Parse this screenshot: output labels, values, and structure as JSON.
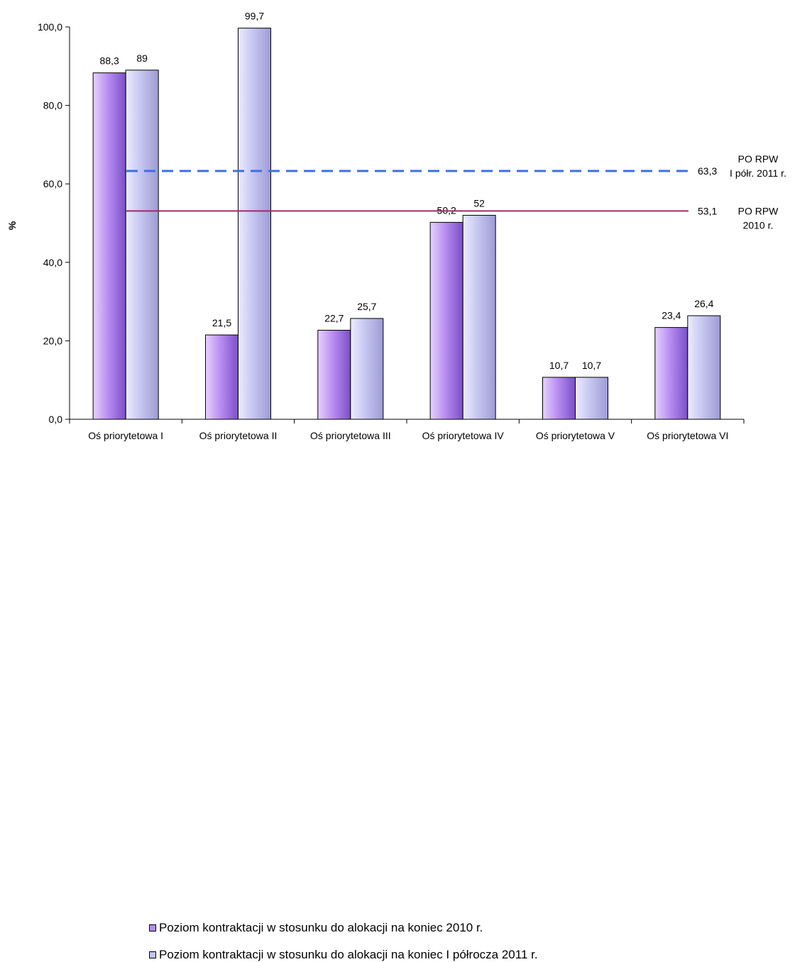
{
  "chart_data": {
    "type": "bar",
    "categories": [
      "Oś priorytetowa I",
      "Oś priorytetowa II",
      "Oś priorytetowa III",
      "Oś priorytetowa IV",
      "Oś priorytetowa V",
      "Oś priorytetowa VI"
    ],
    "series": [
      {
        "name": "Poziom kontraktacji w stosunku do alokacji na koniec 2010 r.",
        "values": [
          88.3,
          21.5,
          22.7,
          50.2,
          10.7,
          23.4
        ],
        "labels": [
          "88,3",
          "21,5",
          "22,7",
          "50,2",
          "10,7",
          "23,4"
        ],
        "color": "#b58cf0"
      },
      {
        "name": "Poziom kontraktacji w stosunku do alokacji na koniec I półrocza 2011 r.",
        "values": [
          89,
          99.7,
          25.7,
          52,
          10.7,
          26.4
        ],
        "labels": [
          "89",
          "99,7",
          "25,7",
          "52",
          "10,7",
          "26,4"
        ],
        "color": "#c3c3ef"
      }
    ],
    "reference_lines": [
      {
        "value": 63.3,
        "label": "63,3",
        "caption_lines": [
          "PO RPW",
          "I półr. 2011 r."
        ],
        "style": "dashed",
        "color": "#3b6fe8"
      },
      {
        "value": 53.1,
        "label": "53,1",
        "caption_lines": [
          "PO RPW",
          "2010 r."
        ],
        "style": "solid",
        "color": "#9b2c66"
      }
    ],
    "ylabel": "%",
    "ylim": [
      0,
      100
    ],
    "yticks": [
      "0,0",
      "20,0",
      "40,0",
      "60,0",
      "80,0",
      "100,0"
    ],
    "grid": false,
    "legend_position": "bottom"
  }
}
